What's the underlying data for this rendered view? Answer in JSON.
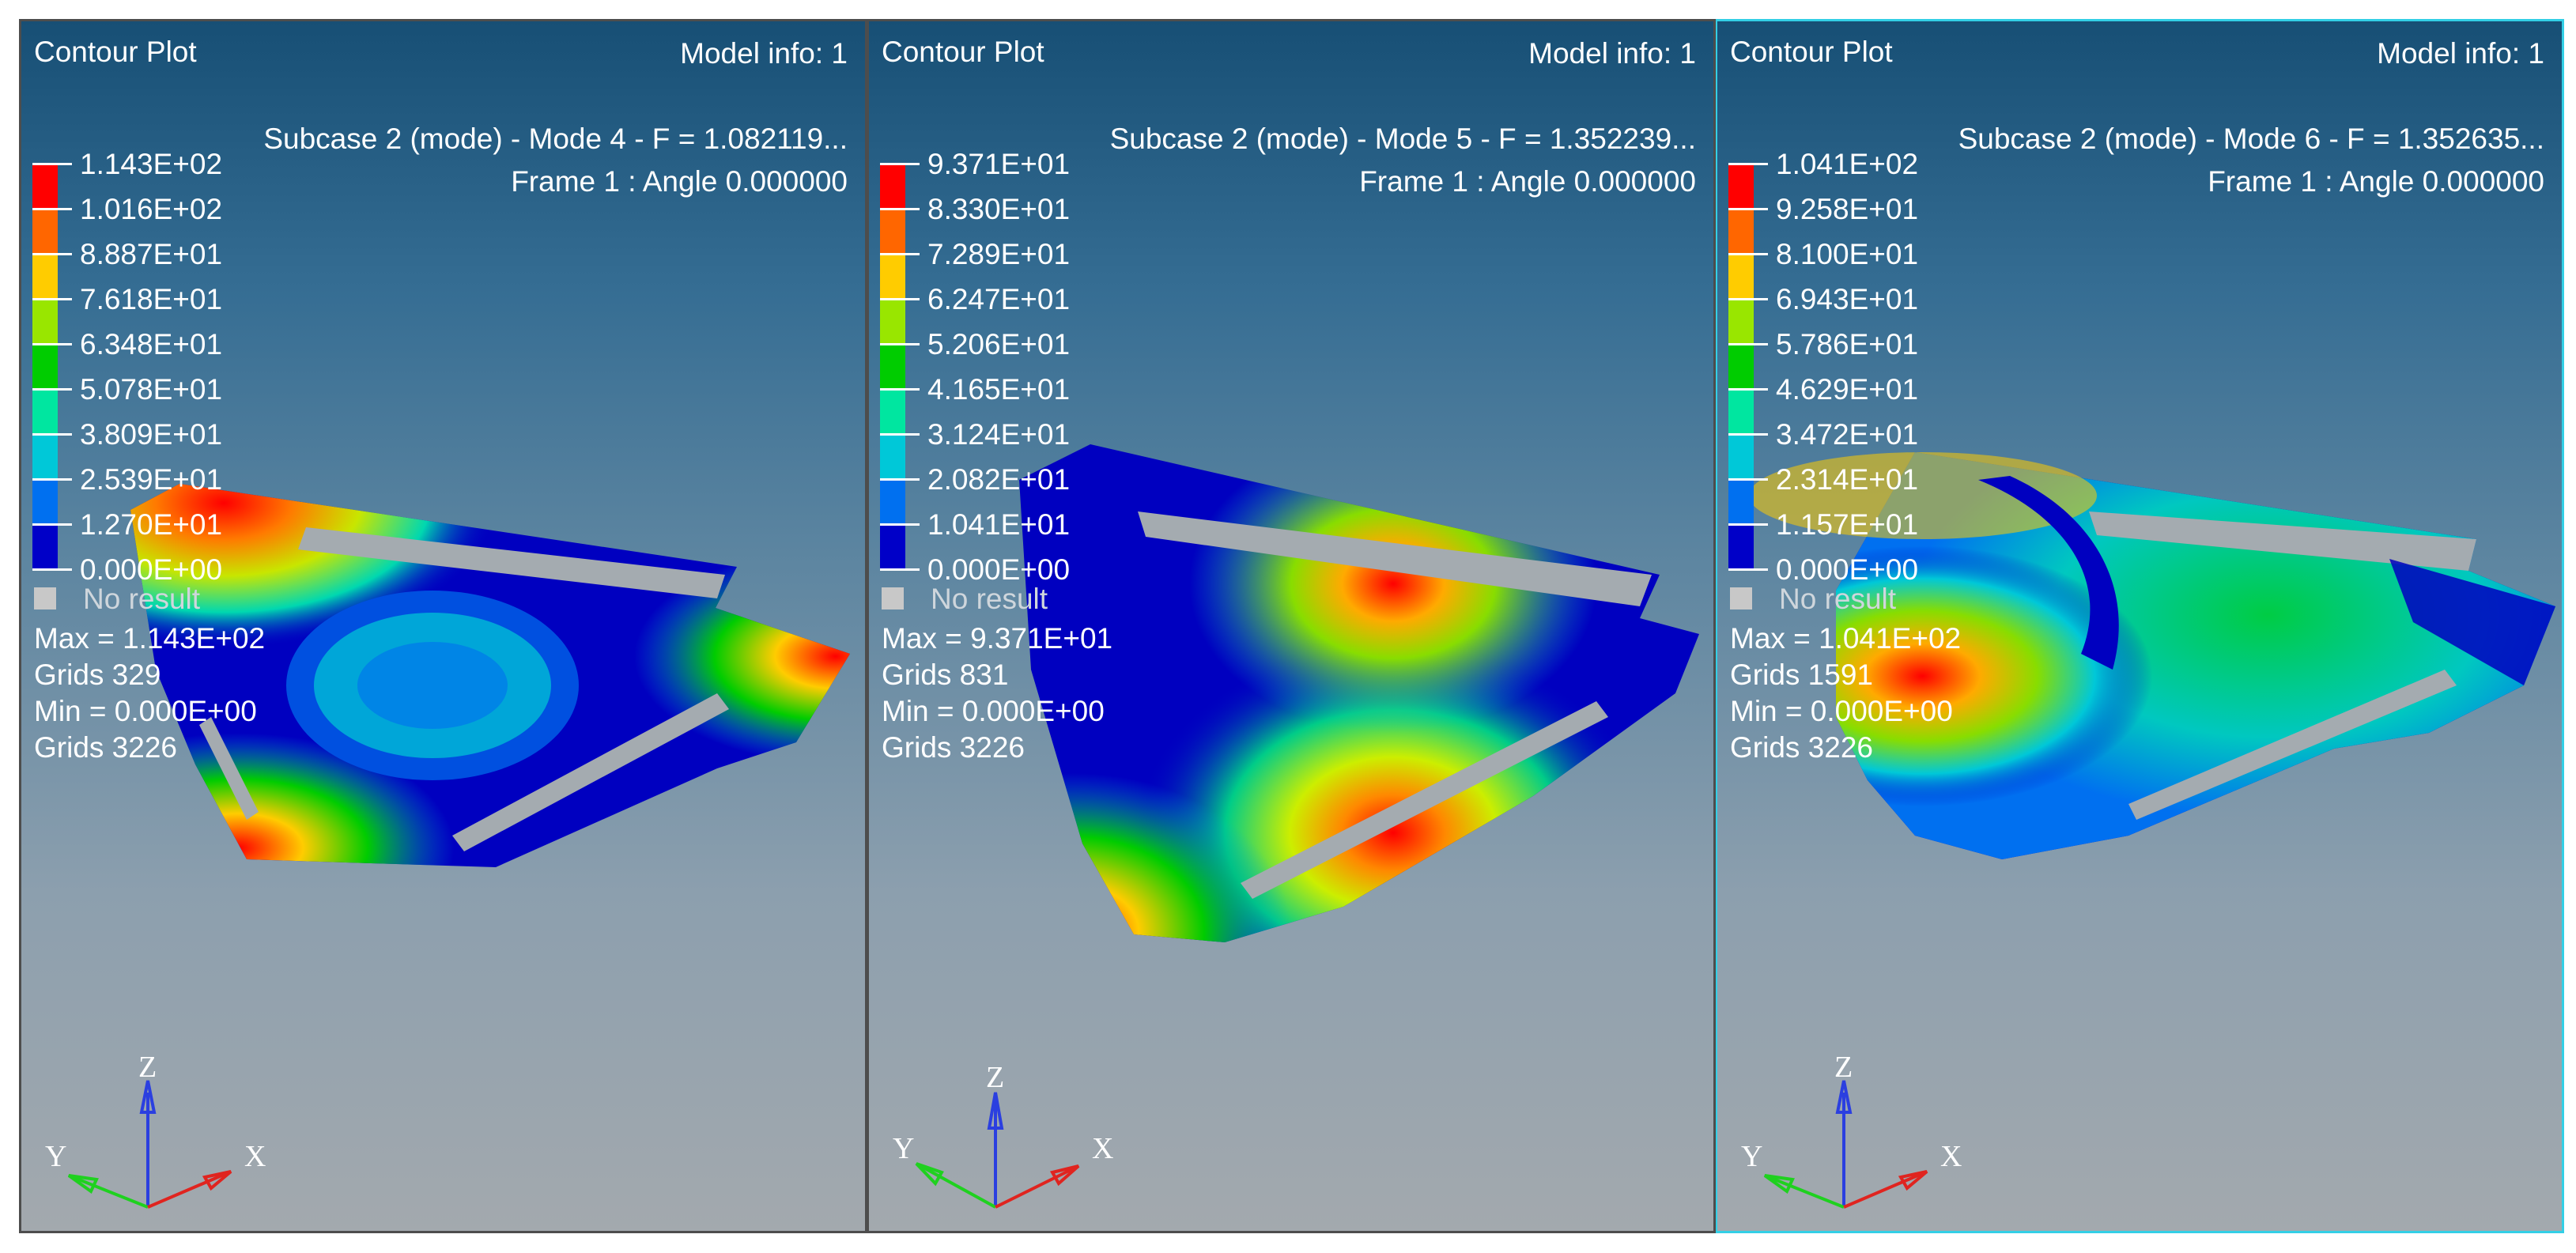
{
  "colors": {
    "legend": [
      "#ff0000",
      "#ff6600",
      "#ffcc00",
      "#99e600",
      "#00cc00",
      "#00e6a0",
      "#00c8d8",
      "#0070f0",
      "#0000c8"
    ],
    "no_result": "#c8c8c8",
    "active_border": "#33cfe6"
  },
  "viewports": [
    {
      "title": "Contour Plot",
      "model_info": "Model info: 1",
      "subcase": "Subcase 2 (mode) - Mode 4 - F = 1.082119...",
      "frame": "Frame 1 : Angle 0.000000",
      "legend_values": [
        "1.143E+02",
        "1.016E+02",
        "8.887E+01",
        "7.618E+01",
        "6.348E+01",
        "5.078E+01",
        "3.809E+01",
        "2.539E+01",
        "1.270E+01",
        "0.000E+00"
      ],
      "no_result": "No result",
      "max": "Max = 1.143E+02",
      "max_grids": "Grids 329",
      "min": "Min = 0.000E+00",
      "min_grids": "Grids 3226",
      "axes": {
        "z": "Z",
        "y": "Y",
        "x": "X"
      }
    },
    {
      "title": "Contour Plot",
      "model_info": "Model info: 1",
      "subcase": "Subcase 2 (mode) - Mode 5 - F = 1.352239...",
      "frame": "Frame 1 : Angle 0.000000",
      "legend_values": [
        "9.371E+01",
        "8.330E+01",
        "7.289E+01",
        "6.247E+01",
        "5.206E+01",
        "4.165E+01",
        "3.124E+01",
        "2.082E+01",
        "1.041E+01",
        "0.000E+00"
      ],
      "no_result": "No result",
      "max": "Max = 9.371E+01",
      "max_grids": "Grids 831",
      "min": "Min = 0.000E+00",
      "min_grids": "Grids 3226",
      "axes": {
        "z": "Z",
        "y": "Y",
        "x": "X"
      }
    },
    {
      "title": "Contour Plot",
      "model_info": "Model info: 1",
      "subcase": "Subcase 2 (mode) - Mode 6 - F = 1.352635...",
      "frame": "Frame 1 : Angle 0.000000",
      "legend_values": [
        "1.041E+02",
        "9.258E+01",
        "8.100E+01",
        "6.943E+01",
        "5.786E+01",
        "4.629E+01",
        "3.472E+01",
        "2.314E+01",
        "1.157E+01",
        "0.000E+00"
      ],
      "no_result": "No result",
      "max": "Max = 1.041E+02",
      "max_grids": "Grids 1591",
      "min": "Min = 0.000E+00",
      "min_grids": "Grids 3226",
      "axes": {
        "z": "Z",
        "y": "Y",
        "x": "X"
      }
    }
  ]
}
